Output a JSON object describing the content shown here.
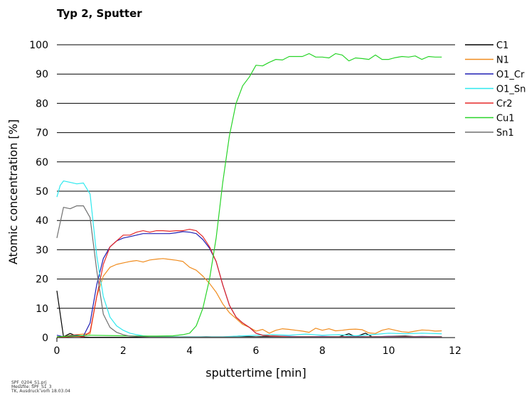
{
  "chart_data": {
    "type": "line",
    "title": "Typ 2, Sputter",
    "xlabel": "sputtertime [min]",
    "ylabel": "Atomic concentration [%]",
    "xlim": [
      0,
      12
    ],
    "ylim": [
      0,
      100
    ],
    "xticks": [
      0,
      2,
      4,
      6,
      8,
      10,
      12
    ],
    "yticks": [
      0,
      10,
      20,
      30,
      40,
      50,
      60,
      70,
      80,
      90,
      100
    ],
    "grid": "horizontal",
    "legend_position": "right",
    "series": [
      {
        "name": "C1",
        "color": "#000000",
        "x": [
          0,
          0.2,
          0.4,
          0.6,
          0.8,
          1.0,
          1.5,
          2.0,
          2.5,
          3.0,
          3.5,
          4.0,
          4.5,
          5.0,
          5.5,
          6.0,
          6.5,
          7.0,
          7.5,
          8.0,
          8.5,
          8.8,
          9.0,
          9.3,
          9.5,
          10.0,
          10.5,
          11.0,
          11.6
        ],
        "y": [
          16,
          0.3,
          1.4,
          0.5,
          0.2,
          0.1,
          0.1,
          0.1,
          0.1,
          0.1,
          0.1,
          0.1,
          0.3,
          0.1,
          0.5,
          0.3,
          0.5,
          0.2,
          0.3,
          0.3,
          0.3,
          1.3,
          0.3,
          1.5,
          0.3,
          0.4,
          0.5,
          0.2,
          0.3
        ]
      },
      {
        "name": "N1",
        "color": "#f08c1e",
        "x": [
          0,
          0.2,
          0.4,
          0.6,
          0.8,
          1.0,
          1.2,
          1.4,
          1.6,
          1.8,
          2.0,
          2.2,
          2.4,
          2.6,
          2.8,
          3.0,
          3.2,
          3.4,
          3.6,
          3.8,
          4.0,
          4.2,
          4.4,
          4.6,
          4.8,
          5.0,
          5.2,
          5.4,
          5.6,
          5.8,
          6.0,
          6.2,
          6.4,
          6.6,
          6.8,
          7.0,
          7.2,
          7.4,
          7.6,
          7.8,
          8.0,
          8.2,
          8.4,
          8.6,
          8.8,
          9.0,
          9.2,
          9.4,
          9.6,
          9.8,
          10.0,
          10.2,
          10.4,
          10.6,
          10.8,
          11.0,
          11.2,
          11.4,
          11.6
        ],
        "y": [
          0.2,
          0.3,
          0.8,
          1.0,
          1.2,
          1.3,
          14,
          21,
          24,
          25,
          25.5,
          26,
          26.3,
          25.8,
          26.5,
          26.8,
          27,
          26.7,
          26.4,
          26,
          24,
          23,
          21,
          18.5,
          15.5,
          11.5,
          8.5,
          6.5,
          4.5,
          3.5,
          2.2,
          2.8,
          1.5,
          2.5,
          3,
          2.8,
          2.5,
          2.2,
          1.8,
          3.2,
          2.5,
          3.0,
          2.3,
          2.5,
          2.8,
          2.9,
          2.7,
          1.6,
          1.4,
          2.5,
          3.0,
          2.5,
          2.0,
          1.8,
          2.2,
          2.6,
          2.5,
          2.2,
          2.3
        ]
      },
      {
        "name": "O1_Cr",
        "color": "#1e1eb4",
        "x": [
          0,
          0.2,
          0.4,
          0.6,
          0.8,
          1.0,
          1.2,
          1.4,
          1.6,
          1.8,
          2.0,
          2.2,
          2.4,
          2.6,
          2.8,
          3.0,
          3.2,
          3.4,
          3.6,
          3.8,
          4.0,
          4.2,
          4.4,
          4.6,
          4.8,
          5.0,
          5.2,
          5.4,
          5.6,
          5.8,
          6.0,
          6.2,
          6.4,
          6.6,
          7.0,
          7.5,
          8.0,
          8.5,
          9.0,
          9.5,
          10.0,
          10.5,
          11.0,
          11.6
        ],
        "y": [
          0.8,
          0.3,
          0.6,
          0.8,
          0.5,
          5,
          18,
          27,
          31,
          33,
          34,
          34.5,
          35,
          35.5,
          35.5,
          35.5,
          35.5,
          35.5,
          35.8,
          36.2,
          36,
          35.5,
          33.5,
          30.5,
          26,
          18,
          11,
          7,
          5,
          3.5,
          1.5,
          0.8,
          0.6,
          0.5,
          0.4,
          0.3,
          0.4,
          0.3,
          0.4,
          0.3,
          0.4,
          0.3,
          0.4,
          0.3
        ]
      },
      {
        "name": "O1_Sn",
        "color": "#2ee8ee",
        "x": [
          0,
          0.1,
          0.2,
          0.4,
          0.6,
          0.8,
          1.0,
          1.2,
          1.4,
          1.6,
          1.8,
          2.0,
          2.2,
          2.4,
          2.6,
          2.8,
          3.0,
          3.5,
          4.0,
          4.5,
          5.0,
          5.5,
          6.0,
          6.5,
          7.0,
          7.5,
          8.0,
          8.5,
          9.0,
          9.5,
          10.0,
          10.5,
          11.0,
          11.6
        ],
        "y": [
          48,
          52,
          53.5,
          53,
          52.5,
          52.8,
          49,
          28,
          14,
          7,
          4,
          2.5,
          1.5,
          1,
          0.6,
          0.4,
          0.3,
          0.3,
          0.3,
          0.3,
          0.3,
          0.5,
          0.8,
          1.0,
          0.8,
          1.2,
          0.8,
          1.0,
          0.6,
          1.0,
          1.5,
          1.3,
          1.5,
          1.3
        ]
      },
      {
        "name": "Cr2",
        "color": "#e62828",
        "x": [
          0,
          0.2,
          0.4,
          0.6,
          0.8,
          1.0,
          1.2,
          1.4,
          1.6,
          1.8,
          2.0,
          2.2,
          2.4,
          2.6,
          2.8,
          3.0,
          3.2,
          3.4,
          3.6,
          3.8,
          4.0,
          4.2,
          4.4,
          4.6,
          4.8,
          5.0,
          5.2,
          5.4,
          5.6,
          5.8,
          6.0,
          6.2,
          6.4,
          6.6,
          7.0,
          7.5,
          8.0,
          8.5,
          9.0,
          9.5,
          10.0,
          10.5,
          11.0,
          11.6
        ],
        "y": [
          0.3,
          0.2,
          0.3,
          0.4,
          0.3,
          2,
          14,
          25,
          31,
          33,
          35,
          35,
          36,
          36.5,
          36,
          36.5,
          36.5,
          36.3,
          36.5,
          36.5,
          37,
          36.5,
          34.5,
          31,
          26,
          18,
          11,
          7,
          5,
          3.5,
          1.5,
          0.8,
          0.6,
          0.5,
          0.3,
          0.3,
          0.3,
          0.3,
          0.3,
          0.3,
          0.3,
          0.3,
          0.3,
          0.3
        ]
      },
      {
        "name": "Cu1",
        "color": "#28d428",
        "x": [
          0,
          0.5,
          1.0,
          1.5,
          2.0,
          2.5,
          3.0,
          3.5,
          3.8,
          4.0,
          4.2,
          4.4,
          4.6,
          4.8,
          5.0,
          5.2,
          5.4,
          5.6,
          5.8,
          6.0,
          6.2,
          6.4,
          6.6,
          6.8,
          7.0,
          7.2,
          7.4,
          7.6,
          7.8,
          8.0,
          8.2,
          8.4,
          8.6,
          8.8,
          9.0,
          9.2,
          9.4,
          9.6,
          9.8,
          10.0,
          10.2,
          10.4,
          10.6,
          10.8,
          11.0,
          11.2,
          11.4,
          11.6
        ],
        "y": [
          0.3,
          0.5,
          0.8,
          0.7,
          0.6,
          0.5,
          0.5,
          0.6,
          1.0,
          1.5,
          4,
          10,
          20,
          34,
          53,
          69,
          80,
          86,
          89,
          93,
          92.8,
          94,
          95,
          94.8,
          96,
          96,
          96,
          97,
          95.8,
          95.8,
          95.5,
          97,
          96.5,
          94.5,
          95.5,
          95.3,
          95,
          96.5,
          95,
          95,
          95.6,
          96,
          95.8,
          96.2,
          95,
          96,
          95.8,
          95.8
        ]
      },
      {
        "name": "Sn1",
        "color": "#707070",
        "x": [
          0,
          0.2,
          0.4,
          0.6,
          0.8,
          1.0,
          1.2,
          1.4,
          1.6,
          1.8,
          2.0,
          2.2,
          2.4,
          2.6,
          2.8,
          3.0,
          3.5,
          4.0,
          4.5,
          5.0,
          5.5,
          6.0,
          6.5,
          7.0,
          7.5,
          8.0,
          8.5,
          9.0,
          9.5,
          10.0,
          10.5,
          11.0,
          11.6
        ],
        "y": [
          34,
          44.5,
          44,
          45,
          45,
          41,
          23,
          8,
          3.5,
          1.8,
          1,
          0.5,
          0.4,
          0.3,
          0.2,
          0.2,
          0.2,
          0.2,
          0.2,
          0.2,
          0.2,
          0.2,
          0.2,
          0.2,
          0.2,
          0.2,
          0.2,
          0.2,
          0.2,
          0.2,
          0.2,
          0.2,
          0.2
        ]
      }
    ]
  },
  "footer_lines": [
    "SPF_0204_S1.prj",
    "Messfile: SPF_S1_3",
    "TK, Ausdruck vom 18.03.04"
  ]
}
